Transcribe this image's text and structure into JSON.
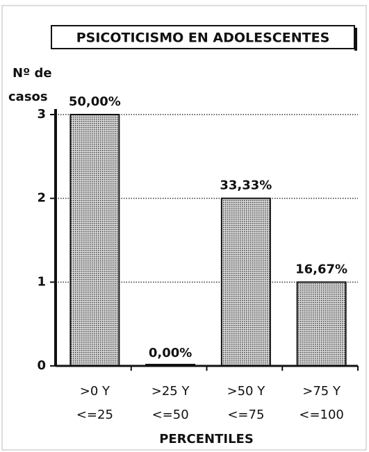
{
  "chart_data": {
    "type": "bar",
    "title": "PSICOTICISMO EN ADOLESCENTES",
    "y_label": [
      "Nº de",
      "casos"
    ],
    "x_label": "PERCENTILES",
    "categories": [
      [
        ">0 Y",
        "<=25"
      ],
      [
        ">25 Y",
        "<=50"
      ],
      [
        ">50 Y",
        "<=75"
      ],
      [
        ">75 Y",
        "<=100"
      ]
    ],
    "values": [
      3,
      0,
      2,
      1
    ],
    "value_labels": [
      "50,00%",
      "0,00%",
      "33,33%",
      "16,67%"
    ],
    "color": "#9a9a9a",
    "ylim": [
      0,
      3
    ],
    "yticks": [
      0,
      1,
      2,
      3
    ],
    "grid": true
  }
}
